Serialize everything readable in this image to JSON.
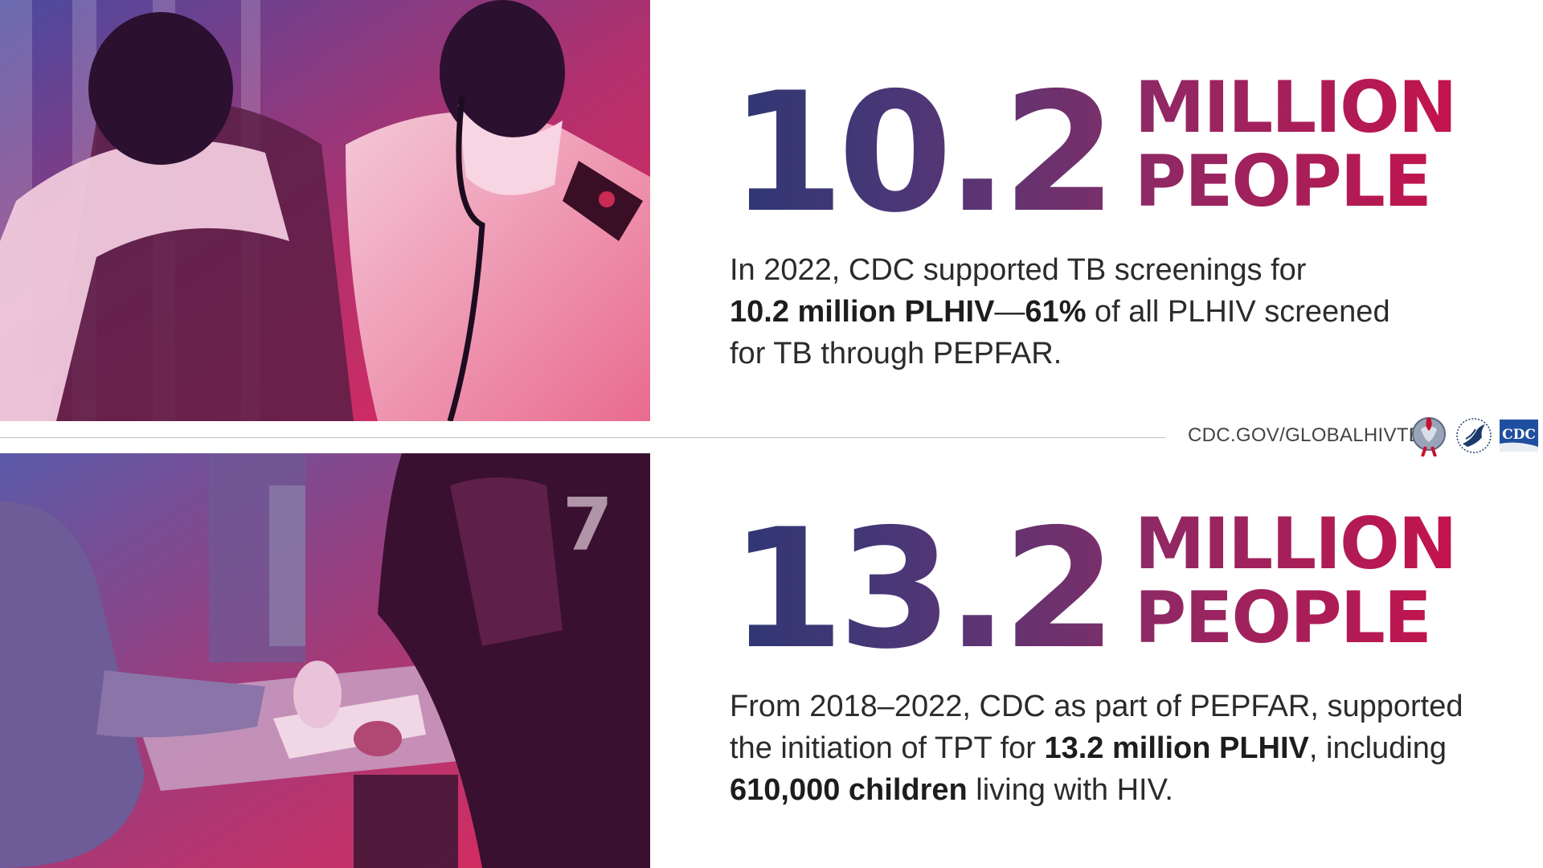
{
  "stats": [
    {
      "number": "10.2",
      "unit_line1": "MILLION",
      "unit_line2": "PEOPLE",
      "desc": {
        "l1": "In 2022, CDC supported TB screenings for",
        "b1": "10.2 million PLHIV",
        "dash": "—",
        "b2": "61%",
        "t2": " of all PLHIV screened",
        "l3": "for TB through PEPFAR."
      }
    },
    {
      "number": "13.2",
      "unit_line1": "MILLION",
      "unit_line2": "PEOPLE",
      "desc": {
        "l1": "From 2018–2022, CDC as part of PEPFAR, supported",
        "t2a": "the initiation of TPT for ",
        "b2": "13.2 million PLHIV",
        "t2b": ", including",
        "b3": "610,000 children",
        "t3": " living with HIV."
      }
    }
  ],
  "footer": {
    "link": "CDC.GOV/GLOBALHIVTB",
    "cdc_logo_text": "CDC"
  },
  "colors": {
    "number_start": "#2d3773",
    "number_end": "#7a2f6a",
    "unit_start": "#8c2a66",
    "unit_end": "#c4134c",
    "photo_tint_start": "#3c3c8c",
    "photo_tint_end": "#e0285a"
  }
}
